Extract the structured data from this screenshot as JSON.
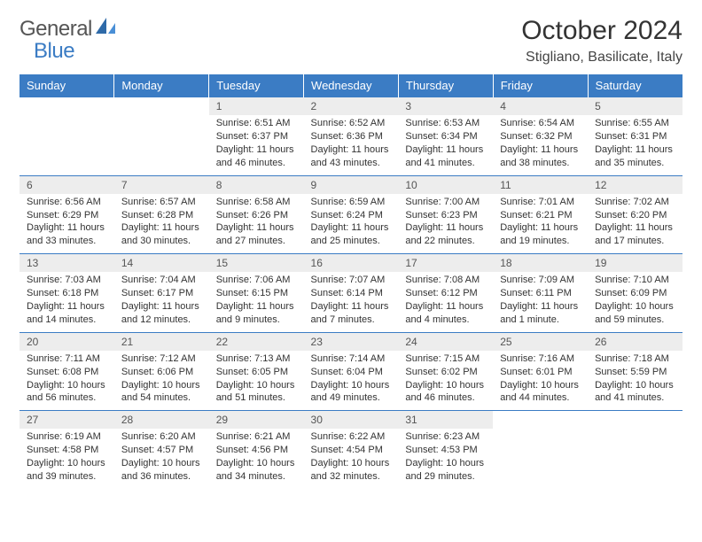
{
  "brand": {
    "name1": "General",
    "name2": "Blue"
  },
  "title": "October 2024",
  "location": "Stigliano, Basilicate, Italy",
  "colors": {
    "header_bg": "#3b7cc4",
    "header_text": "#ffffff",
    "daynum_bg": "#ededed",
    "text": "#333333",
    "border": "#3b7cc4"
  },
  "typography": {
    "title_size": 30,
    "location_size": 16,
    "header_size": 13,
    "cell_size": 11
  },
  "days_of_week": [
    "Sunday",
    "Monday",
    "Tuesday",
    "Wednesday",
    "Thursday",
    "Friday",
    "Saturday"
  ],
  "weeks": [
    [
      {
        "num": "",
        "sunrise": "",
        "sunset": "",
        "daylight": ""
      },
      {
        "num": "",
        "sunrise": "",
        "sunset": "",
        "daylight": ""
      },
      {
        "num": "1",
        "sunrise": "Sunrise: 6:51 AM",
        "sunset": "Sunset: 6:37 PM",
        "daylight": "Daylight: 11 hours and 46 minutes."
      },
      {
        "num": "2",
        "sunrise": "Sunrise: 6:52 AM",
        "sunset": "Sunset: 6:36 PM",
        "daylight": "Daylight: 11 hours and 43 minutes."
      },
      {
        "num": "3",
        "sunrise": "Sunrise: 6:53 AM",
        "sunset": "Sunset: 6:34 PM",
        "daylight": "Daylight: 11 hours and 41 minutes."
      },
      {
        "num": "4",
        "sunrise": "Sunrise: 6:54 AM",
        "sunset": "Sunset: 6:32 PM",
        "daylight": "Daylight: 11 hours and 38 minutes."
      },
      {
        "num": "5",
        "sunrise": "Sunrise: 6:55 AM",
        "sunset": "Sunset: 6:31 PM",
        "daylight": "Daylight: 11 hours and 35 minutes."
      }
    ],
    [
      {
        "num": "6",
        "sunrise": "Sunrise: 6:56 AM",
        "sunset": "Sunset: 6:29 PM",
        "daylight": "Daylight: 11 hours and 33 minutes."
      },
      {
        "num": "7",
        "sunrise": "Sunrise: 6:57 AM",
        "sunset": "Sunset: 6:28 PM",
        "daylight": "Daylight: 11 hours and 30 minutes."
      },
      {
        "num": "8",
        "sunrise": "Sunrise: 6:58 AM",
        "sunset": "Sunset: 6:26 PM",
        "daylight": "Daylight: 11 hours and 27 minutes."
      },
      {
        "num": "9",
        "sunrise": "Sunrise: 6:59 AM",
        "sunset": "Sunset: 6:24 PM",
        "daylight": "Daylight: 11 hours and 25 minutes."
      },
      {
        "num": "10",
        "sunrise": "Sunrise: 7:00 AM",
        "sunset": "Sunset: 6:23 PM",
        "daylight": "Daylight: 11 hours and 22 minutes."
      },
      {
        "num": "11",
        "sunrise": "Sunrise: 7:01 AM",
        "sunset": "Sunset: 6:21 PM",
        "daylight": "Daylight: 11 hours and 19 minutes."
      },
      {
        "num": "12",
        "sunrise": "Sunrise: 7:02 AM",
        "sunset": "Sunset: 6:20 PM",
        "daylight": "Daylight: 11 hours and 17 minutes."
      }
    ],
    [
      {
        "num": "13",
        "sunrise": "Sunrise: 7:03 AM",
        "sunset": "Sunset: 6:18 PM",
        "daylight": "Daylight: 11 hours and 14 minutes."
      },
      {
        "num": "14",
        "sunrise": "Sunrise: 7:04 AM",
        "sunset": "Sunset: 6:17 PM",
        "daylight": "Daylight: 11 hours and 12 minutes."
      },
      {
        "num": "15",
        "sunrise": "Sunrise: 7:06 AM",
        "sunset": "Sunset: 6:15 PM",
        "daylight": "Daylight: 11 hours and 9 minutes."
      },
      {
        "num": "16",
        "sunrise": "Sunrise: 7:07 AM",
        "sunset": "Sunset: 6:14 PM",
        "daylight": "Daylight: 11 hours and 7 minutes."
      },
      {
        "num": "17",
        "sunrise": "Sunrise: 7:08 AM",
        "sunset": "Sunset: 6:12 PM",
        "daylight": "Daylight: 11 hours and 4 minutes."
      },
      {
        "num": "18",
        "sunrise": "Sunrise: 7:09 AM",
        "sunset": "Sunset: 6:11 PM",
        "daylight": "Daylight: 11 hours and 1 minute."
      },
      {
        "num": "19",
        "sunrise": "Sunrise: 7:10 AM",
        "sunset": "Sunset: 6:09 PM",
        "daylight": "Daylight: 10 hours and 59 minutes."
      }
    ],
    [
      {
        "num": "20",
        "sunrise": "Sunrise: 7:11 AM",
        "sunset": "Sunset: 6:08 PM",
        "daylight": "Daylight: 10 hours and 56 minutes."
      },
      {
        "num": "21",
        "sunrise": "Sunrise: 7:12 AM",
        "sunset": "Sunset: 6:06 PM",
        "daylight": "Daylight: 10 hours and 54 minutes."
      },
      {
        "num": "22",
        "sunrise": "Sunrise: 7:13 AM",
        "sunset": "Sunset: 6:05 PM",
        "daylight": "Daylight: 10 hours and 51 minutes."
      },
      {
        "num": "23",
        "sunrise": "Sunrise: 7:14 AM",
        "sunset": "Sunset: 6:04 PM",
        "daylight": "Daylight: 10 hours and 49 minutes."
      },
      {
        "num": "24",
        "sunrise": "Sunrise: 7:15 AM",
        "sunset": "Sunset: 6:02 PM",
        "daylight": "Daylight: 10 hours and 46 minutes."
      },
      {
        "num": "25",
        "sunrise": "Sunrise: 7:16 AM",
        "sunset": "Sunset: 6:01 PM",
        "daylight": "Daylight: 10 hours and 44 minutes."
      },
      {
        "num": "26",
        "sunrise": "Sunrise: 7:18 AM",
        "sunset": "Sunset: 5:59 PM",
        "daylight": "Daylight: 10 hours and 41 minutes."
      }
    ],
    [
      {
        "num": "27",
        "sunrise": "Sunrise: 6:19 AM",
        "sunset": "Sunset: 4:58 PM",
        "daylight": "Daylight: 10 hours and 39 minutes."
      },
      {
        "num": "28",
        "sunrise": "Sunrise: 6:20 AM",
        "sunset": "Sunset: 4:57 PM",
        "daylight": "Daylight: 10 hours and 36 minutes."
      },
      {
        "num": "29",
        "sunrise": "Sunrise: 6:21 AM",
        "sunset": "Sunset: 4:56 PM",
        "daylight": "Daylight: 10 hours and 34 minutes."
      },
      {
        "num": "30",
        "sunrise": "Sunrise: 6:22 AM",
        "sunset": "Sunset: 4:54 PM",
        "daylight": "Daylight: 10 hours and 32 minutes."
      },
      {
        "num": "31",
        "sunrise": "Sunrise: 6:23 AM",
        "sunset": "Sunset: 4:53 PM",
        "daylight": "Daylight: 10 hours and 29 minutes."
      },
      {
        "num": "",
        "sunrise": "",
        "sunset": "",
        "daylight": ""
      },
      {
        "num": "",
        "sunrise": "",
        "sunset": "",
        "daylight": ""
      }
    ]
  ]
}
